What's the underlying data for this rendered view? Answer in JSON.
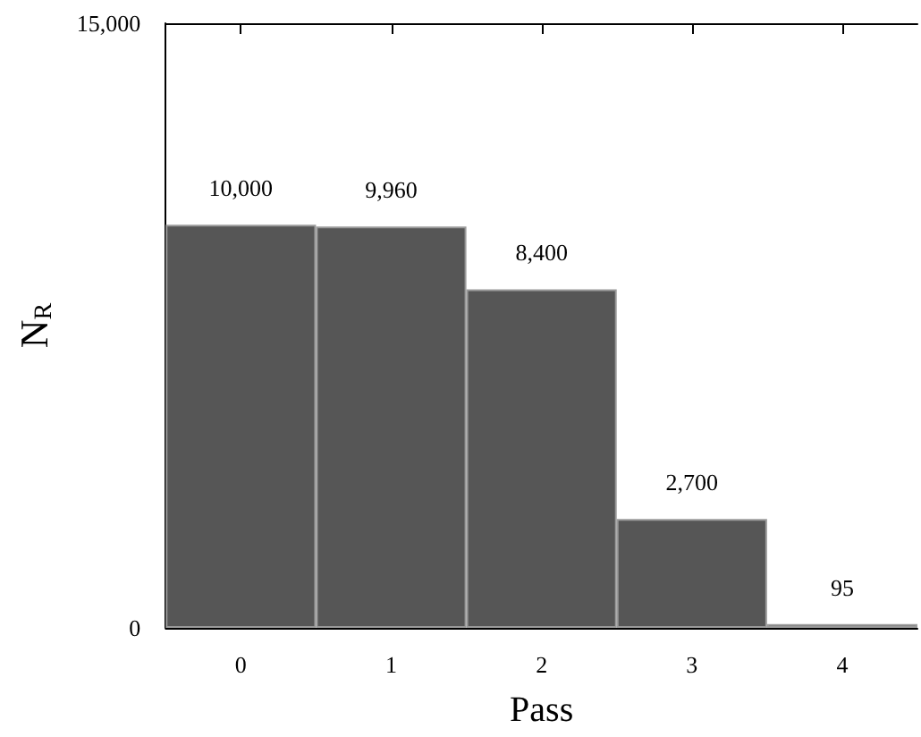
{
  "chart_data": {
    "type": "bar",
    "xlabel": "Pass",
    "ylabel": "N$_{R}$",
    "categories": [
      "0",
      "1",
      "2",
      "3",
      "4"
    ],
    "values": [
      10000,
      9960,
      8400,
      2700,
      95
    ],
    "value_labels": [
      "10,000",
      "9,960",
      "8,400",
      "2,700",
      "95"
    ],
    "color": "#565656",
    "ylim": [
      0,
      15000
    ],
    "yticks": [
      {
        "value": 0,
        "label": "0"
      },
      {
        "value": 15000,
        "label": "15,000"
      }
    ]
  }
}
